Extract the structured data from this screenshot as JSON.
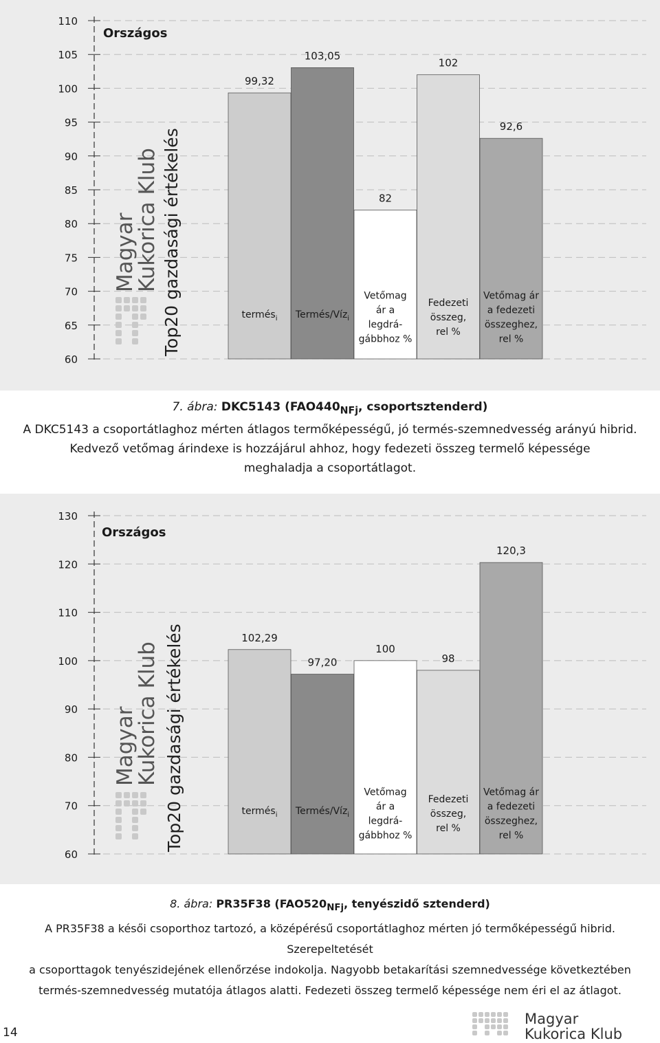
{
  "chart_data": [
    {
      "type": "bar",
      "title": "Országos",
      "categories": [
        [
          "termés",
          "i"
        ],
        [
          "Termés/Víz",
          "i"
        ],
        [
          "Vetőmag",
          "ár a",
          "legdrá-",
          "gábbhoz %"
        ],
        [
          "Fedezeti",
          "összeg,",
          "rel %"
        ],
        [
          "Vetőmag ár",
          "a fedezeti",
          "összeghez,",
          "rel %"
        ]
      ],
      "values": [
        99.32,
        103.05,
        82,
        102,
        92.6
      ],
      "value_labels": [
        "99,32",
        "103,05",
        "82",
        "102",
        "92,6"
      ],
      "bar_colors": [
        "#cdcdcd",
        "#8a8a8a",
        "#ffffff",
        "#dcdcdc",
        "#a9a9a9"
      ],
      "ylim": [
        60,
        110
      ],
      "yticks": [
        110,
        105,
        100,
        95,
        90,
        85,
        80,
        75,
        70,
        65,
        60
      ],
      "grid": true,
      "xlabel": "",
      "ylabel": ""
    },
    {
      "type": "bar",
      "title": "Országos",
      "categories": [
        [
          "termés",
          "i"
        ],
        [
          "Termés/Víz",
          "i"
        ],
        [
          "Vetőmag",
          "ár a",
          "legdrá-",
          "gábbhoz %"
        ],
        [
          "Fedezeti",
          "összeg,",
          "rel %"
        ],
        [
          "Vetőmag ár",
          "a fedezeti",
          "összeghez,",
          "rel %"
        ]
      ],
      "values": [
        102.29,
        97.2,
        100,
        98,
        120.3
      ],
      "value_labels": [
        "102,29",
        "97,20",
        "100",
        "98",
        "120,3"
      ],
      "bar_colors": [
        "#cdcdcd",
        "#8a8a8a",
        "#ffffff",
        "#dcdcdc",
        "#a9a9a9"
      ],
      "ylim": [
        60,
        130
      ],
      "yticks": [
        130,
        120,
        110,
        100,
        90,
        80,
        70,
        60
      ],
      "grid": true,
      "xlabel": "",
      "ylabel": ""
    }
  ],
  "watermark": {
    "line1": "Magyar",
    "line2": "Kukorica Klub",
    "line3": "Top20 gazdasági értékelés"
  },
  "figure1": {
    "lead": "7. ábra:",
    "title_main": "DKC5143 (FAO440",
    "title_sub": "NFj",
    "title_rest": ", csoportsztenderd)",
    "line1": "A DKC5143 a csoportátlaghoz mérten átlagos termőképességű, jó termés-szemnedvesség arányú hibrid.",
    "line2": "Kedvező vetőmag árindexe is hozzájárul ahhoz, hogy fedezeti összeg termelő képessége",
    "line3": "meghaladja a csoportátlagot."
  },
  "figure2": {
    "lead": "8. ábra:",
    "title_main": "PR35F38 (FAO520",
    "title_sub": "NFj",
    "title_rest": ", tenyészidő sztenderd)",
    "line1": "A PR35F38 a késői csoporthoz tartozó, a középérésű csoportátlaghoz mérten jó termőképességű hibrid. Szerepeltetését",
    "line2": "a csoporttagok tenyészidejének ellenőrzése indokolja. Nagyobb betakarítási szemnedvessége következtében",
    "line3": "termés-szemnedvesség mutatója átlagos alatti. Fedezeti összeg termelő képessége nem éri el az átlagot."
  },
  "page_number": "14",
  "footer_logo": {
    "line1": "Magyar",
    "line2": "Kukorica Klub"
  },
  "colors": {
    "panel_bg": "#ececec",
    "axis": "#333333",
    "grid": "#bdbdbd",
    "text": "#1a1a1a"
  }
}
